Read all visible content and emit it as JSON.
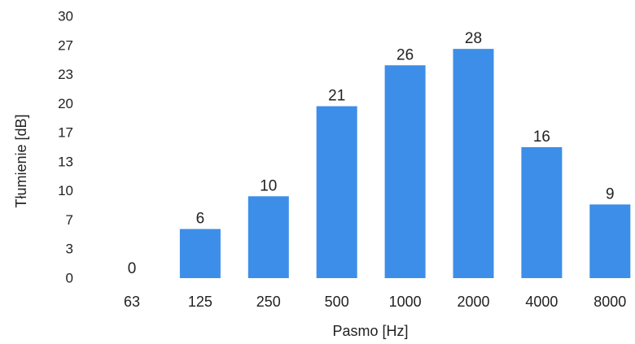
{
  "chart_data": {
    "type": "bar",
    "title": "",
    "xlabel": "Pasmo [Hz]",
    "ylabel": "Tłumienie [dB]",
    "categories": [
      "63",
      "125",
      "250",
      "500",
      "1000",
      "2000",
      "4000",
      "8000"
    ],
    "values": [
      0,
      6,
      10,
      21,
      26,
      28,
      16,
      9
    ],
    "data_labels": [
      "0",
      "6",
      "10",
      "21",
      "26",
      "28",
      "16",
      "9"
    ],
    "y_ticks": [
      "30",
      "27",
      "23",
      "20",
      "17",
      "13",
      "10",
      "7",
      "3",
      "0"
    ],
    "ylim": [
      0,
      30
    ],
    "grid": false,
    "legend": "none",
    "bar_color": "#3d8ee8"
  }
}
